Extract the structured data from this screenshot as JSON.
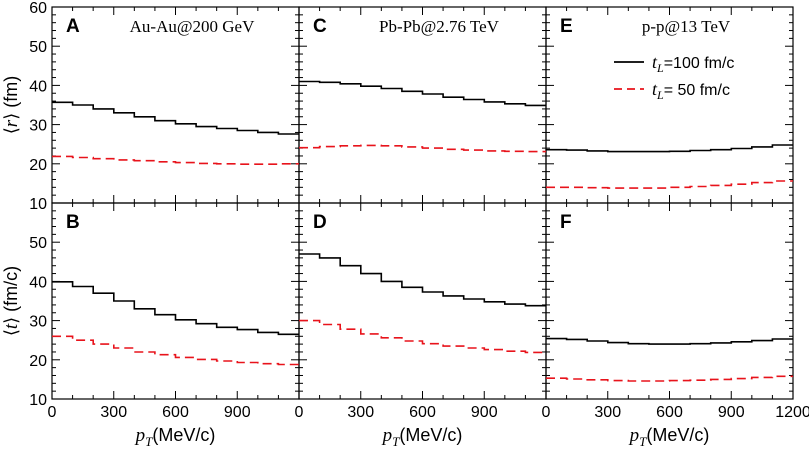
{
  "chart_data": {
    "type": "line",
    "style": "step",
    "x_unit_label": "(MeV/c)",
    "x_symbol": "p",
    "x_subscript": "T",
    "xlim": [
      0,
      1200
    ],
    "x_ticks": [
      "0",
      "300",
      "600",
      "900",
      "1200"
    ],
    "rows": [
      {
        "quantity": "r",
        "ylabel_unit": "(fm)",
        "ylim": [
          10,
          60
        ],
        "y_ticks": [
          "10",
          "20",
          "30",
          "40",
          "50",
          "60"
        ]
      },
      {
        "quantity": "t",
        "ylabel_unit": "(fm/c)",
        "ylim": [
          10,
          60
        ],
        "y_ticks": [
          "10",
          "20",
          "30",
          "40",
          "50"
        ]
      }
    ],
    "legend": {
      "location": "top-right of panel E",
      "entries": [
        {
          "symbol": "t",
          "subscript": "L",
          "text": "=100 fm/c",
          "color": "#000000",
          "dash": "solid"
        },
        {
          "symbol": "t",
          "subscript": "L",
          "text": "= 50 fm/c",
          "color": "#e8131b",
          "dash": "dashed"
        }
      ]
    },
    "series_colors": {
      "tL100": "#000000",
      "tL50": "#e8131b"
    },
    "bin_edges": [
      0,
      100,
      200,
      300,
      400,
      500,
      600,
      700,
      800,
      900,
      1000,
      1100,
      1200
    ],
    "panels": [
      {
        "id": "A",
        "letter": "A",
        "title": "Au-Au@200 GeV",
        "row": 0,
        "col": 0,
        "series": [
          {
            "name": "tL=100 fm/c",
            "key": "tL100",
            "values": [
              35.7,
              35.0,
              34.0,
              33.0,
              32.0,
              31.0,
              30.2,
              29.5,
              29.0,
              28.5,
              28.0,
              27.6
            ]
          },
          {
            "name": "tL=50 fm/c",
            "key": "tL50",
            "values": [
              21.9,
              21.6,
              21.3,
              21.0,
              20.8,
              20.5,
              20.3,
              20.1,
              20.0,
              19.9,
              19.9,
              20.0
            ]
          }
        ]
      },
      {
        "id": "C",
        "letter": "C",
        "title": "Pb-Pb@2.76 TeV",
        "row": 0,
        "col": 1,
        "series": [
          {
            "name": "tL=100 fm/c",
            "key": "tL100",
            "values": [
              41.0,
              40.8,
              40.4,
              39.8,
              39.2,
              38.5,
              37.8,
              37.0,
              36.4,
              35.8,
              35.3,
              34.9
            ]
          },
          {
            "name": "tL=50 fm/c",
            "key": "tL50",
            "values": [
              24.1,
              24.4,
              24.6,
              24.7,
              24.6,
              24.3,
              24.0,
              23.7,
              23.5,
              23.3,
              23.2,
              23.1
            ]
          }
        ]
      },
      {
        "id": "E",
        "letter": "E",
        "title": "p-p@13 TeV",
        "row": 0,
        "col": 2,
        "series": [
          {
            "name": "tL=100 fm/c",
            "key": "tL100",
            "values": [
              23.6,
              23.5,
              23.3,
              23.1,
              23.1,
              23.1,
              23.2,
              23.4,
              23.6,
              23.9,
              24.3,
              24.8
            ]
          },
          {
            "name": "tL=50 fm/c",
            "key": "tL50",
            "values": [
              14.0,
              14.0,
              13.9,
              13.8,
              13.8,
              13.8,
              14.0,
              14.2,
              14.5,
              14.8,
              15.2,
              15.6
            ]
          }
        ]
      },
      {
        "id": "B",
        "letter": "B",
        "title": "",
        "row": 1,
        "col": 0,
        "series": [
          {
            "name": "tL=100 fm/c",
            "key": "tL100",
            "values": [
              39.9,
              38.7,
              37.0,
              35.0,
              33.0,
              31.5,
              30.2,
              29.2,
              28.3,
              27.7,
              27.0,
              26.5
            ]
          },
          {
            "name": "tL=50 fm/c",
            "key": "tL50",
            "values": [
              26.0,
              25.0,
              24.0,
              23.0,
              22.0,
              21.3,
              20.6,
              20.1,
              19.7,
              19.3,
              19.0,
              18.8
            ]
          }
        ]
      },
      {
        "id": "D",
        "letter": "D",
        "title": "",
        "row": 1,
        "col": 1,
        "series": [
          {
            "name": "tL=100 fm/c",
            "key": "tL100",
            "values": [
              47.0,
              46.0,
              44.0,
              42.0,
              40.0,
              38.5,
              37.3,
              36.3,
              35.5,
              34.8,
              34.2,
              33.8
            ]
          },
          {
            "name": "tL=50 fm/c",
            "key": "tL50",
            "values": [
              30.0,
              29.0,
              27.8,
              26.6,
              25.6,
              24.8,
              24.1,
              23.5,
              23.0,
              22.6,
              22.2,
              21.9
            ]
          }
        ]
      },
      {
        "id": "F",
        "letter": "F",
        "title": "",
        "row": 1,
        "col": 2,
        "series": [
          {
            "name": "tL=100 fm/c",
            "key": "tL100",
            "values": [
              25.4,
              25.2,
              24.8,
              24.4,
              24.1,
              24.0,
              24.0,
              24.1,
              24.3,
              24.6,
              24.9,
              25.3
            ]
          },
          {
            "name": "tL=50 fm/c",
            "key": "tL50",
            "values": [
              15.3,
              15.1,
              14.9,
              14.7,
              14.6,
              14.6,
              14.7,
              14.8,
              15.0,
              15.2,
              15.5,
              15.8
            ]
          }
        ]
      }
    ]
  }
}
